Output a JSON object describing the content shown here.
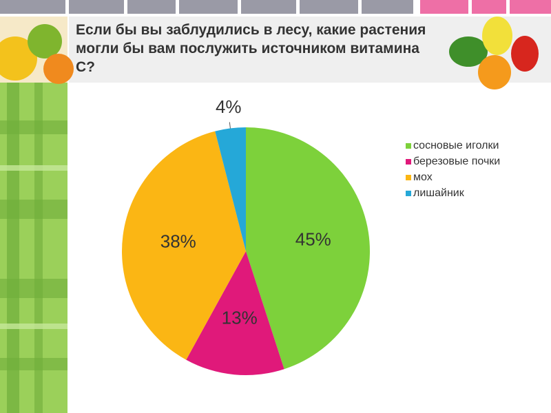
{
  "chart_data": {
    "type": "pie",
    "title": "Если бы вы заблудились в лесу, какие растения могли бы вам послужить источником витамина С?",
    "categories": [
      "сосновые иголки",
      "березовые почки",
      "мох",
      "лишайник"
    ],
    "values": [
      45,
      13,
      38,
      4
    ],
    "value_labels": [
      "45%",
      "13%",
      "38%",
      "4%"
    ],
    "colors": [
      "#7dd13b",
      "#e0197a",
      "#fbb614",
      "#25a8d8"
    ],
    "legend": "right"
  }
}
